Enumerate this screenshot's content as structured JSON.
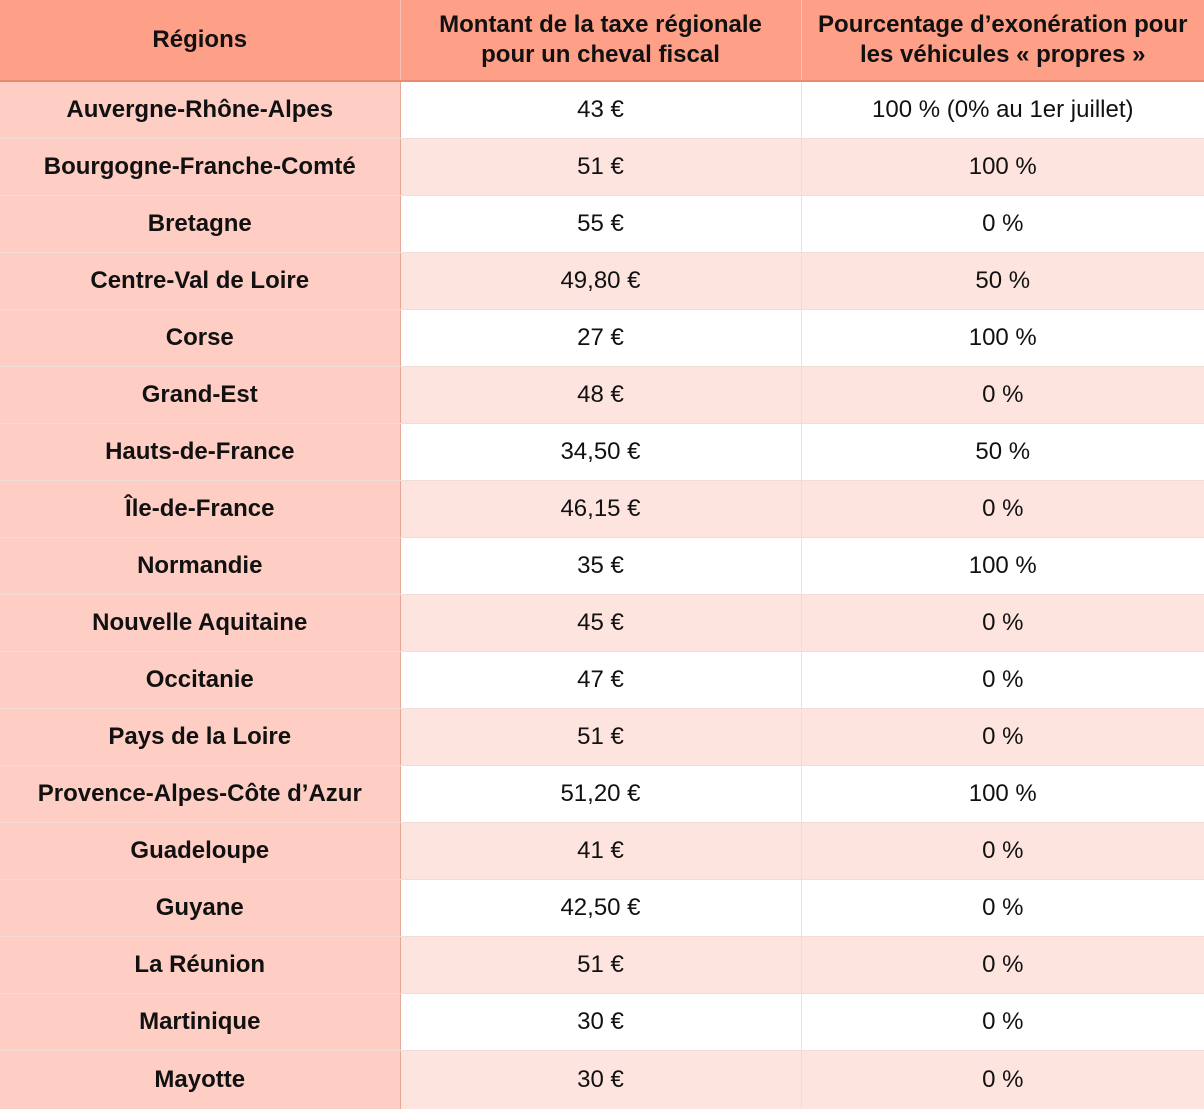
{
  "table": {
    "headers": [
      "Régions",
      "Montant de la taxe régionale pour un cheval fiscal",
      "Pourcentage d’exonération pour les véhicules  « propres »"
    ],
    "rows": [
      {
        "region": "Auvergne-Rhône-Alpes",
        "amount": "43 €",
        "exemption": "100 % (0% au 1er juillet)"
      },
      {
        "region": "Bourgogne-Franche-Comté",
        "amount": "51 €",
        "exemption": "100 %"
      },
      {
        "region": "Bretagne",
        "amount": "55 €",
        "exemption": "0 %"
      },
      {
        "region": "Centre-Val de Loire",
        "amount": "49,80 €",
        "exemption": "50 %"
      },
      {
        "region": "Corse",
        "amount": "27 €",
        "exemption": "100 %"
      },
      {
        "region": "Grand-Est",
        "amount": "48 €",
        "exemption": "0 %"
      },
      {
        "region": "Hauts-de-France",
        "amount": "34,50 €",
        "exemption": "50 %"
      },
      {
        "region": "Île-de-France",
        "amount": "46,15 €",
        "exemption": "0 %"
      },
      {
        "region": "Normandie",
        "amount": "35 €",
        "exemption": "100 %"
      },
      {
        "region": "Nouvelle Aquitaine",
        "amount": "45 €",
        "exemption": "0 %"
      },
      {
        "region": "Occitanie",
        "amount": "47 €",
        "exemption": "0 %"
      },
      {
        "region": "Pays de la Loire",
        "amount": "51 €",
        "exemption": "0 %"
      },
      {
        "region": "Provence-Alpes-Côte d’Azur",
        "amount": "51,20 €",
        "exemption": "100 %"
      },
      {
        "region": "Guadeloupe",
        "amount": "41 €",
        "exemption": "0 %"
      },
      {
        "region": "Guyane",
        "amount": "42,50 €",
        "exemption": "0 %"
      },
      {
        "region": "La Réunion",
        "amount": "51 €",
        "exemption": "0 %"
      },
      {
        "region": "Martinique",
        "amount": "30 €",
        "exemption": "0 %"
      },
      {
        "region": "Mayotte",
        "amount": "30 €",
        "exemption": "0 %"
      }
    ]
  },
  "colors": {
    "header_bg": "#fe9f87",
    "region_col_bg": "#fecec5",
    "row_alt_bg": "#fee4de",
    "row_bg": "#ffffff"
  }
}
